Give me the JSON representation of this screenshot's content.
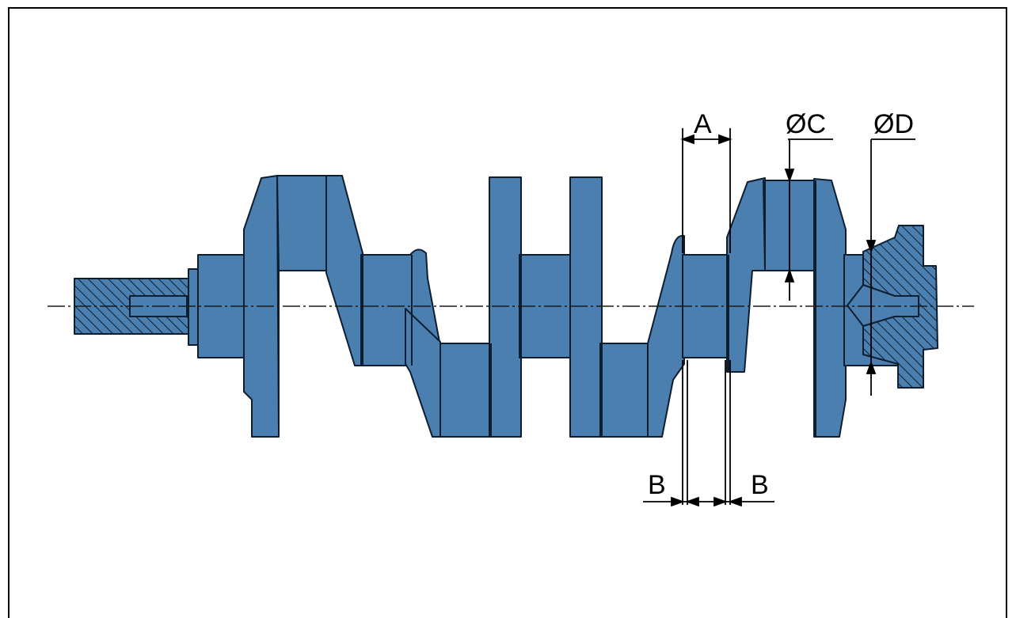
{
  "diagram": {
    "labels": {
      "a": "A",
      "c": "ØC",
      "d": "ØD",
      "b_left": "B",
      "b_right": "B"
    },
    "colors": {
      "part_fill": "#4a7fb0",
      "outline": "#0d1e30",
      "line": "#000000",
      "background": "#ffffff"
    }
  }
}
